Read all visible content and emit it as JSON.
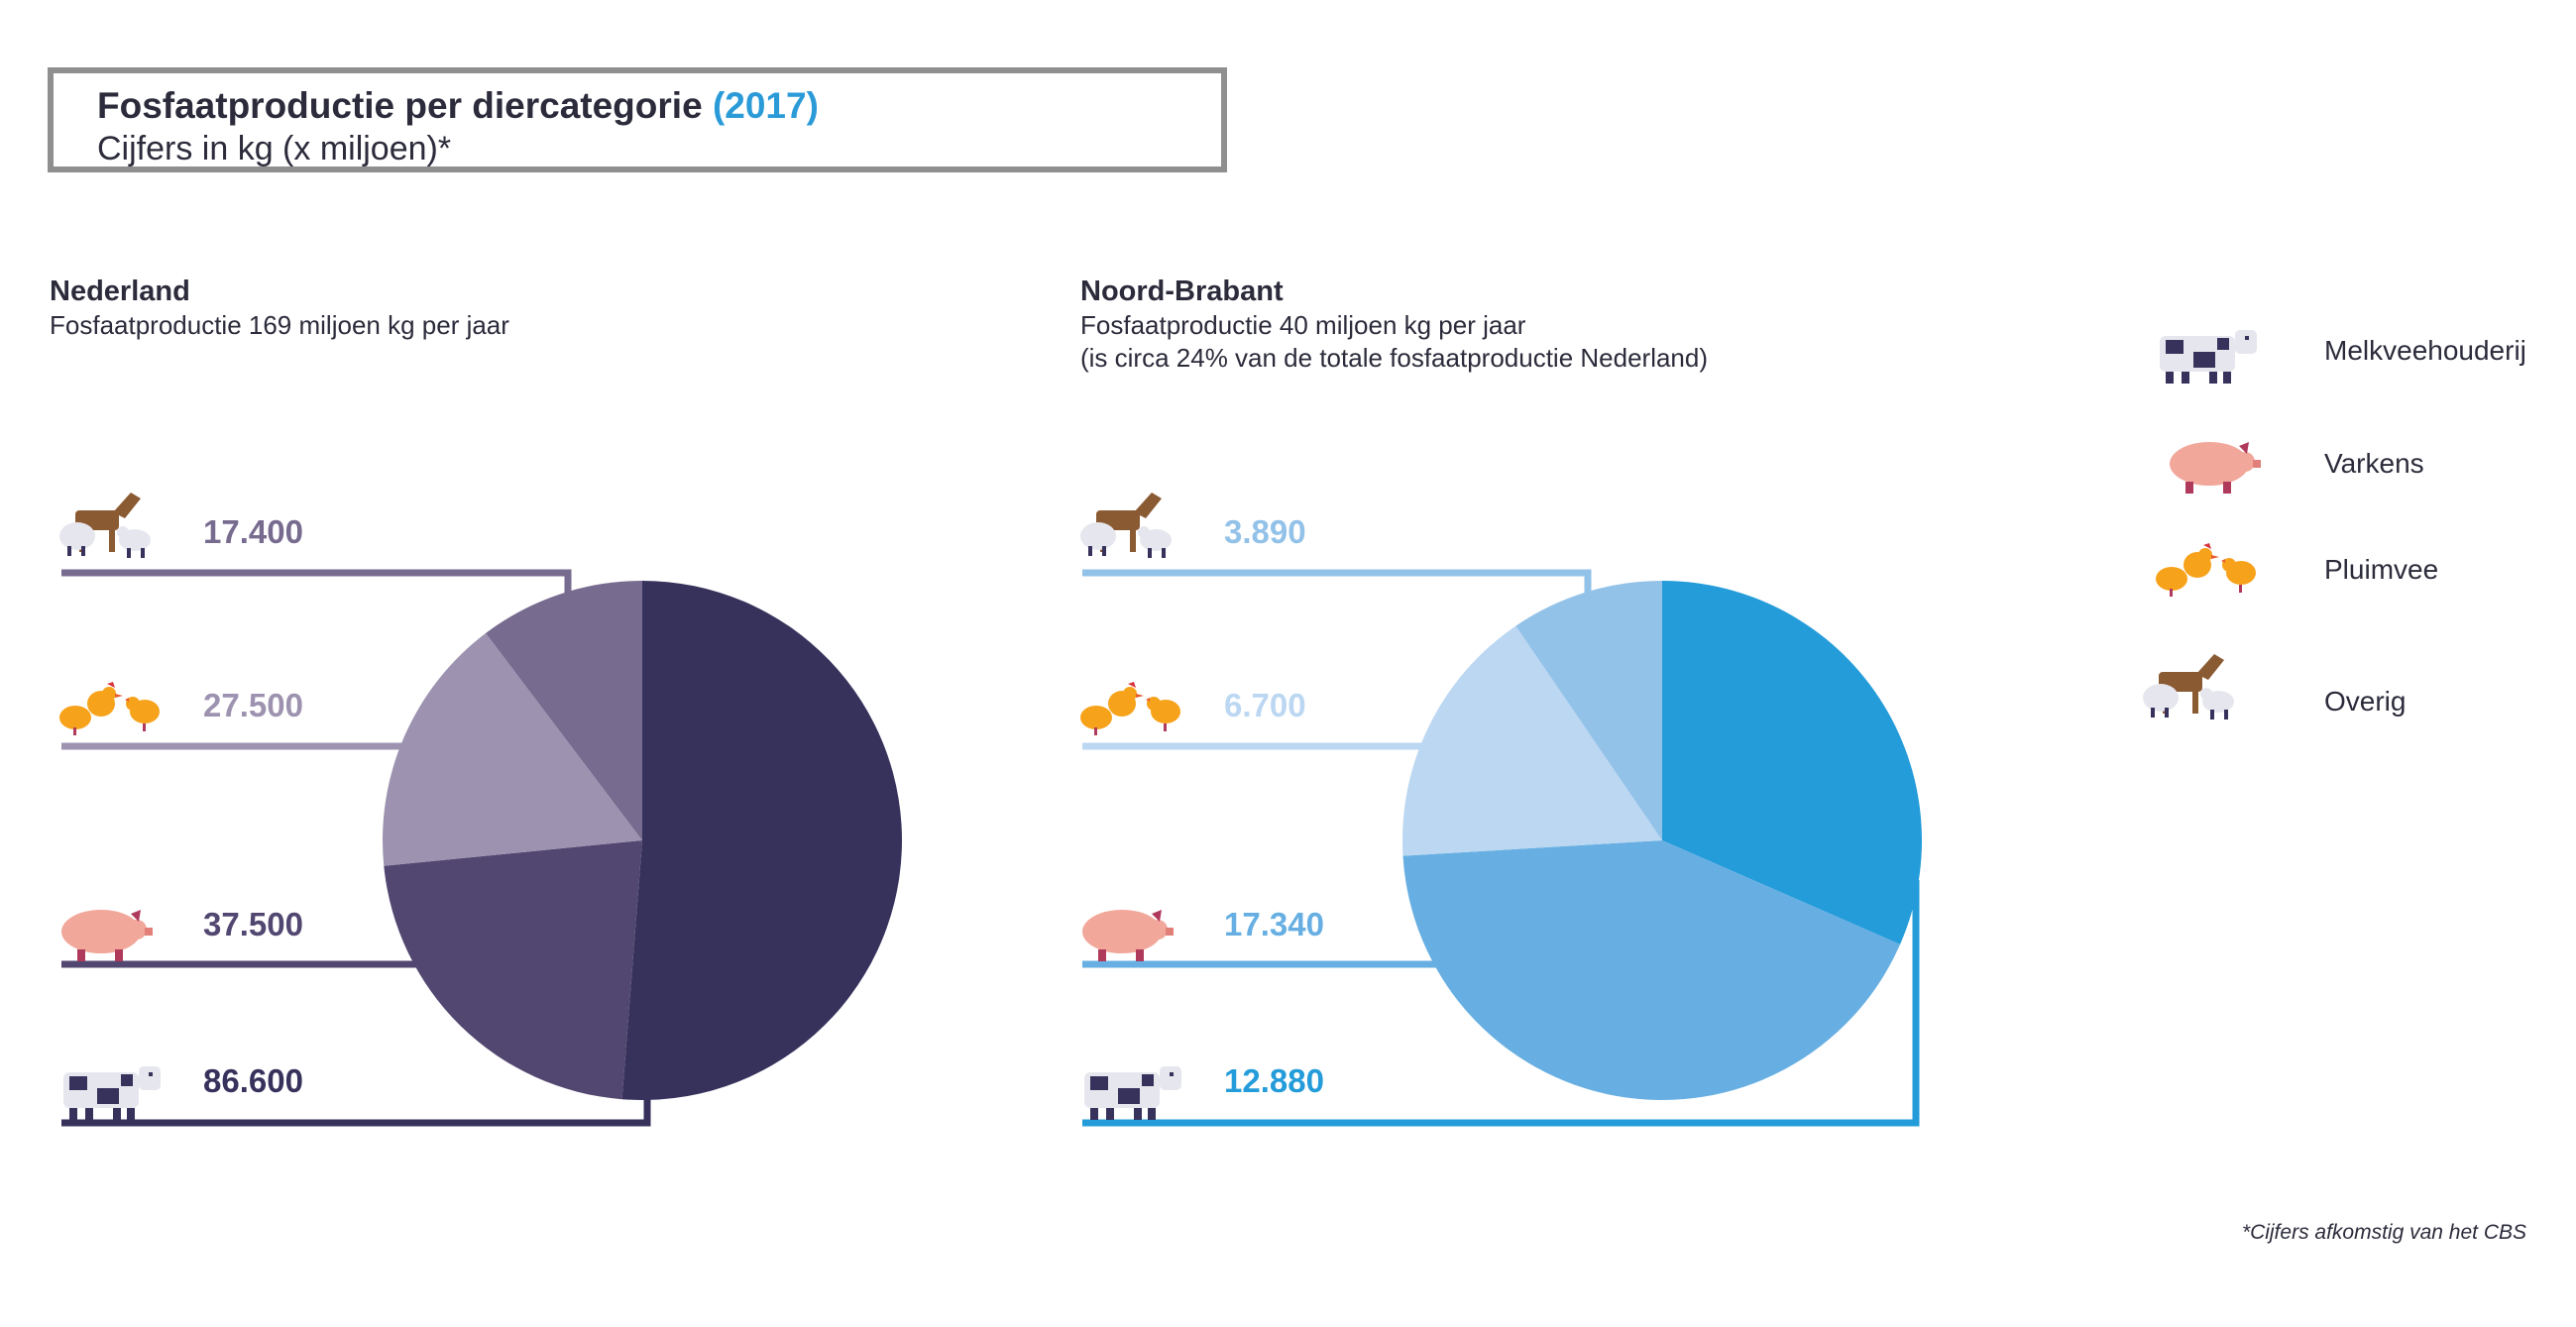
{
  "header": {
    "title": "Fosfaatproductie per diercategorie",
    "year": "(2017)",
    "subtitle": "Cijfers in kg (x miljoen)*"
  },
  "legend": [
    {
      "icon": "cow-icon",
      "label": "Melkveehouderij"
    },
    {
      "icon": "pig-icon",
      "label": "Varkens"
    },
    {
      "icon": "chicken-icon",
      "label": "Pluimvee"
    },
    {
      "icon": "horse-sheep-icon",
      "label": "Overig"
    }
  ],
  "footnote": "*Cijfers afkomstig van het CBS",
  "chart_data": [
    {
      "type": "pie",
      "title": "Nederland",
      "subtitle": "Fosfaatproductie 169 miljoen kg per jaar",
      "categories": [
        "Melkveehouderij",
        "Varkens",
        "Pluimvee",
        "Overig"
      ],
      "values": [
        86.6,
        37.5,
        27.5,
        17.4
      ],
      "value_labels": [
        "86.600",
        "37.500",
        "27.500",
        "17.400"
      ],
      "colors": [
        "#37325c",
        "#524771",
        "#9d93b0",
        "#776b8f"
      ]
    },
    {
      "type": "pie",
      "title": "Noord-Brabant",
      "subtitle": "Fosfaatproductie 40 miljoen kg per jaar",
      "subtitle2": "(is circa 24% van de totale fosfaatproductie Nederland)",
      "categories": [
        "Melkveehouderij",
        "Varkens",
        "Pluimvee",
        "Overig"
      ],
      "values": [
        12.88,
        17.34,
        6.7,
        3.89
      ],
      "value_labels": [
        "12.880",
        "17.340",
        "6.700",
        "3.890"
      ],
      "colors": [
        "#259cda",
        "#67afe2",
        "#bbd7f2",
        "#93c2e9"
      ]
    }
  ]
}
